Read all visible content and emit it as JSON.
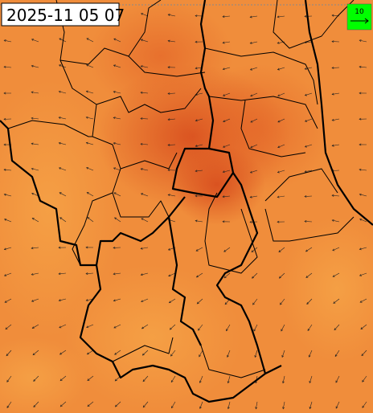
{
  "timestamp": "2025-11 05 07",
  "legend": {
    "label": "10"
  }
}
